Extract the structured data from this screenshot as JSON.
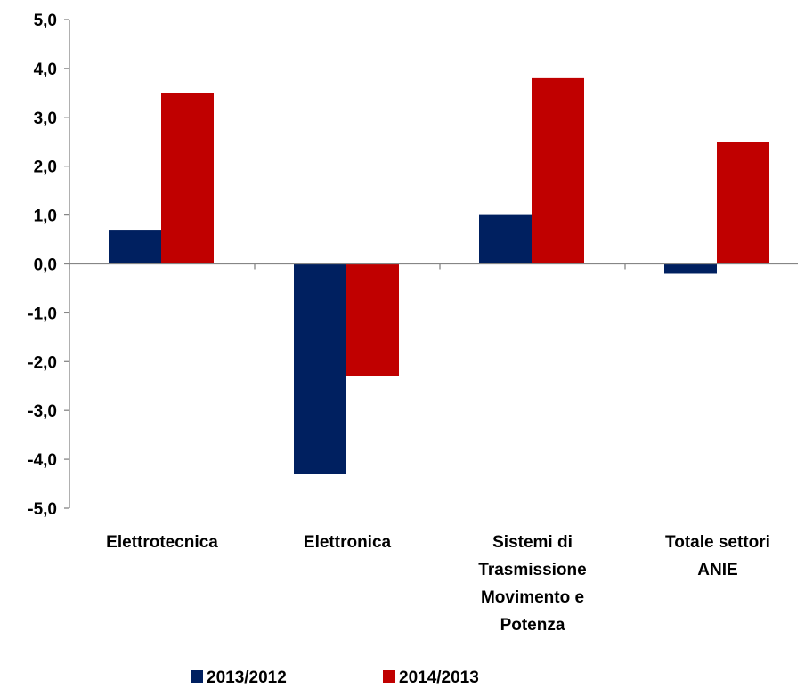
{
  "chart_data": {
    "type": "bar",
    "title": "",
    "xlabel": "",
    "ylabel": "",
    "ylim": [
      -5,
      5
    ],
    "yticks": [
      5,
      4,
      3,
      2,
      1,
      0,
      -1,
      -2,
      -3,
      -4,
      -5
    ],
    "ytick_labels": [
      "5,0",
      "4,0",
      "3,0",
      "2,0",
      "1,0",
      "0,0",
      "-1,0",
      "-2,0",
      "-3,0",
      "-4,0",
      "-5,0"
    ],
    "categories": [
      [
        "Elettrotecnica"
      ],
      [
        "Elettronica"
      ],
      [
        "Sistemi di",
        "Trasmissione",
        "Movimento e",
        "Potenza"
      ],
      [
        "Totale settori",
        "ANIE"
      ]
    ],
    "series": [
      {
        "name": "2013/2012",
        "color": "#002060",
        "values": [
          0.7,
          -4.3,
          1.0,
          -0.2
        ]
      },
      {
        "name": "2014/2013",
        "color": "#C00000",
        "values": [
          3.5,
          -2.3,
          3.8,
          2.5
        ]
      }
    ],
    "grid": false,
    "legend_position": "bottom"
  }
}
